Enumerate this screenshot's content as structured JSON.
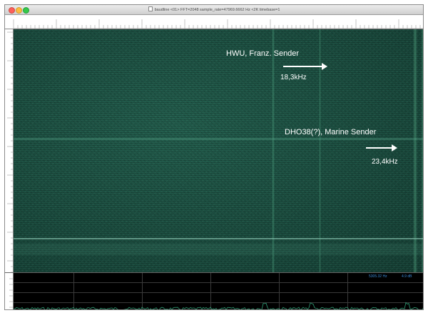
{
  "window": {
    "title": "baudline  <01>  FFT=2048 sample_rate=47969.6662 Hz  <2K timebase=1"
  },
  "annotations": [
    {
      "name": "HWU, Franz. Sender",
      "frequency": "18,3kHz"
    },
    {
      "name": "DHO38(?), Marine Sender",
      "frequency": "23,4kHz"
    }
  ],
  "scope": {
    "readout_left": "5305.32 Hz",
    "readout_right": "4.9 dB"
  },
  "colors": {
    "spectrogram_bg": "#134437",
    "carrier_line": "#3c8a6f",
    "annotation_text": "#ffffff",
    "scope_bg": "#000000",
    "scope_trace": "#2f9c74"
  }
}
